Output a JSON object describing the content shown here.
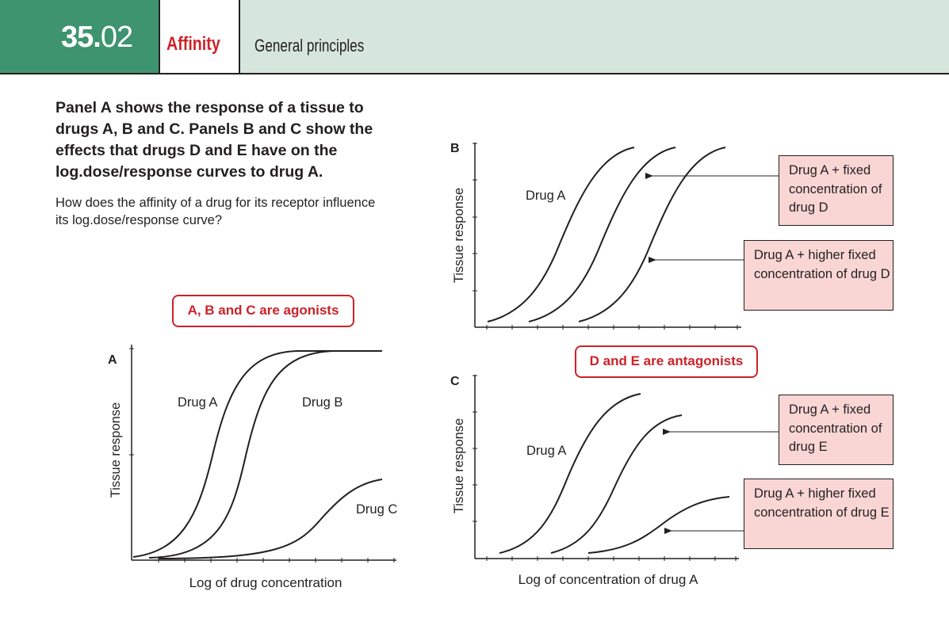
{
  "header": {
    "number_bold": "35.",
    "number_rest": "02",
    "topic": "Affinity",
    "section": "General principles"
  },
  "intro": {
    "lead": "Panel A shows the response of a tissue to drugs A, B and C. Panels B and C show the effects that drugs D and E have on the log.dose/response curves to drug A.",
    "question": "How does the affinity of a drug for its receptor influence its log.dose/response curve?"
  },
  "callouts": {
    "agonists": "A, B and C are agonists",
    "antagonists": "D and E are antagonists"
  },
  "panel_a": {
    "letter": "A",
    "ylabel": "Tissue response",
    "xlabel": "Log of drug concentration",
    "labels": {
      "drug_a": "Drug A",
      "drug_b": "Drug B",
      "drug_c": "Drug C"
    }
  },
  "panel_b": {
    "letter": "B",
    "ylabel": "Tissue response",
    "labels": {
      "drug_a": "Drug A"
    },
    "box_fixed": "Drug A + fixed concentration of drug D",
    "box_higher": "Drug A + higher fixed concentration of drug D"
  },
  "panel_c": {
    "letter": "C",
    "ylabel": "Tissue response",
    "xlabel": "Log of concentration of drug A",
    "labels": {
      "drug_a": "Drug A"
    },
    "box_fixed": "Drug A + fixed concentration of drug E",
    "box_higher": "Drug A + higher fixed concentration of drug E"
  },
  "colors": {
    "header_green": "#3f9470",
    "header_bg": "#d7e6dc",
    "accent_red": "#cc2229",
    "box_pink": "#f9d6d4"
  }
}
